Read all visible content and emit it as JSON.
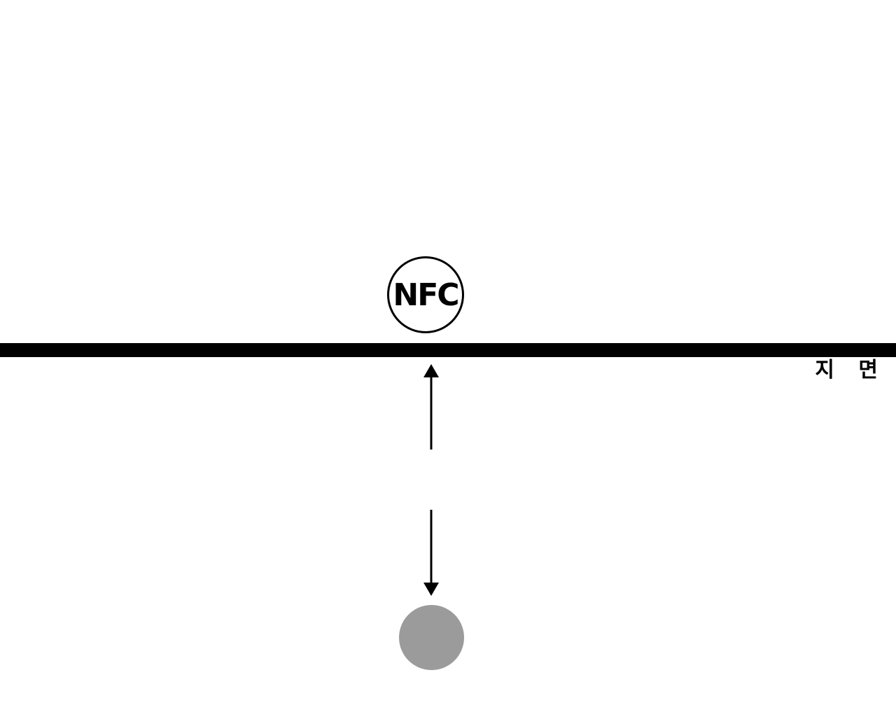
{
  "nfc_badge": {
    "label": "NFC"
  },
  "ground": {
    "label": "지 면"
  },
  "colors": {
    "line": "#000000",
    "dot": "#9b9b9b",
    "background": "#ffffff"
  },
  "icons": {
    "up_arrow": "arrow-up-icon",
    "down_arrow": "arrow-down-icon",
    "dot": "circle-icon"
  }
}
